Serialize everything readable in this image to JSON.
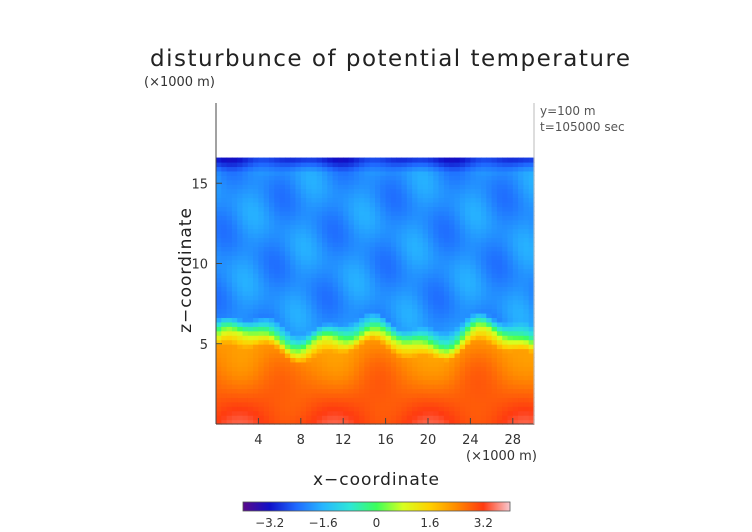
{
  "chart_data": {
    "type": "heatmap",
    "title": "disturbunce of potential temperature",
    "axis_unit_top": "(×1000 m)",
    "axis_unit_bottom": "(×1000 m)",
    "xlabel": "x−coordinate",
    "ylabel": "z−coordinate",
    "annotations": [
      "y=100 m",
      "t=105000 sec"
    ],
    "xlim": [
      0,
      30
    ],
    "ylim": [
      0,
      20
    ],
    "x_ticks": [
      4,
      8,
      12,
      16,
      20,
      24,
      28
    ],
    "x_tick_labels": [
      "4",
      "8",
      "12",
      "16",
      "20",
      "24",
      "28"
    ],
    "y_ticks": [
      5,
      10,
      15
    ],
    "y_tick_labels": [
      "5",
      "10",
      "15"
    ],
    "data_top_z": 16.6,
    "colorbar": {
      "range": [
        -4,
        4
      ],
      "ticks": [
        -3.2,
        -1.6,
        0,
        1.6,
        3.2
      ],
      "tick_labels": [
        "−3.2",
        "−1.6",
        "0",
        "1.6",
        "3.2"
      ],
      "colors": [
        "#5a0a8a",
        "#1010c8",
        "#1f6aff",
        "#27b6ff",
        "#2ee6d8",
        "#3cff5a",
        "#d8ff20",
        "#ffd000",
        "#ff8a00",
        "#ff3a10",
        "#f8c8d0"
      ]
    },
    "field_description_values": {
      "upper_region_value_range": [
        -2.6,
        -1.6
      ],
      "top_edge_value": -3.4,
      "transition_layer_z": [
        5.0,
        6.5
      ],
      "lower_region_value_range": [
        1.4,
        3.2
      ]
    }
  }
}
